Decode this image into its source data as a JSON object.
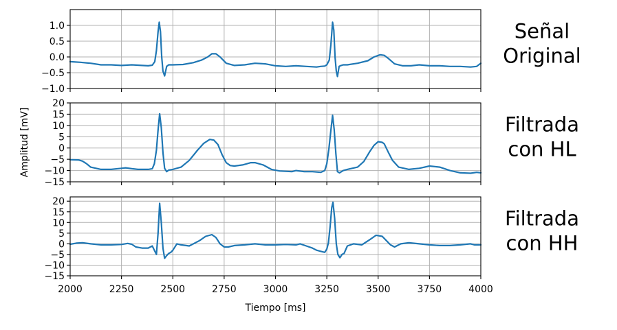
{
  "chart_data": {
    "type": "line",
    "shared_x": true,
    "xlabel": "Tiempo [ms]",
    "ylabel": "Amplitud [mV]",
    "xlim": [
      2000,
      4000
    ],
    "xticks": [
      2000,
      2250,
      2500,
      2750,
      3000,
      3250,
      3500,
      3750,
      4000
    ],
    "xtick_labels": [
      "2000",
      "2250",
      "2500",
      "2750",
      "3000",
      "3250",
      "3500",
      "3750",
      "4000"
    ],
    "grid": true,
    "color": "#1f77b4",
    "panels": [
      {
        "side_label": [
          "Señal",
          "Original"
        ],
        "ylim": [
          -1.0,
          1.5
        ],
        "yticks": [
          -1.0,
          -0.5,
          0.0,
          0.5,
          1.0
        ],
        "ytick_labels": [
          "−1.0",
          "−0.5",
          "0.0",
          "0.5",
          "1.0"
        ],
        "x": [
          2000,
          2050,
          2100,
          2150,
          2200,
          2250,
          2300,
          2350,
          2380,
          2400,
          2412,
          2420,
          2428,
          2434,
          2440,
          2446,
          2452,
          2460,
          2470,
          2480,
          2500,
          2550,
          2600,
          2640,
          2670,
          2690,
          2710,
          2730,
          2760,
          2800,
          2850,
          2900,
          2950,
          3000,
          3050,
          3100,
          3150,
          3200,
          3220,
          3240,
          3250,
          3262,
          3270,
          3278,
          3284,
          3290,
          3296,
          3302,
          3310,
          3320,
          3330,
          3350,
          3400,
          3450,
          3480,
          3510,
          3530,
          3550,
          3580,
          3620,
          3660,
          3700,
          3750,
          3800,
          3850,
          3900,
          3950,
          3980,
          4000
        ],
        "values": [
          -0.15,
          -0.17,
          -0.2,
          -0.25,
          -0.25,
          -0.27,
          -0.25,
          -0.27,
          -0.28,
          -0.26,
          -0.15,
          0.2,
          0.8,
          1.1,
          0.8,
          0.0,
          -0.45,
          -0.6,
          -0.3,
          -0.25,
          -0.25,
          -0.24,
          -0.18,
          -0.1,
          0.0,
          0.1,
          0.1,
          0.0,
          -0.2,
          -0.27,
          -0.25,
          -0.2,
          -0.22,
          -0.28,
          -0.3,
          -0.28,
          -0.3,
          -0.32,
          -0.3,
          -0.29,
          -0.25,
          -0.1,
          0.4,
          1.1,
          0.85,
          0.0,
          -0.45,
          -0.62,
          -0.3,
          -0.27,
          -0.25,
          -0.25,
          -0.2,
          -0.12,
          0.0,
          0.07,
          0.05,
          -0.05,
          -0.22,
          -0.28,
          -0.28,
          -0.25,
          -0.28,
          -0.28,
          -0.3,
          -0.3,
          -0.32,
          -0.3,
          -0.2
        ]
      },
      {
        "side_label": [
          "Filtrada",
          "con HL"
        ],
        "ylim": [
          -15,
          20
        ],
        "yticks": [
          -15,
          -10,
          -5,
          0,
          5,
          10,
          15,
          20
        ],
        "ytick_labels": [
          "−15",
          "−10",
          "−5",
          "0",
          "5",
          "10",
          "15",
          "20"
        ],
        "x": [
          2000,
          2040,
          2060,
          2080,
          2100,
          2150,
          2200,
          2250,
          2270,
          2300,
          2330,
          2380,
          2400,
          2410,
          2420,
          2428,
          2436,
          2444,
          2452,
          2460,
          2470,
          2480,
          2500,
          2540,
          2580,
          2620,
          2650,
          2680,
          2700,
          2720,
          2740,
          2760,
          2780,
          2800,
          2840,
          2880,
          2900,
          2940,
          2980,
          3020,
          3080,
          3100,
          3140,
          3180,
          3220,
          3240,
          3250,
          3260,
          3270,
          3278,
          3286,
          3294,
          3302,
          3312,
          3330,
          3350,
          3400,
          3430,
          3460,
          3480,
          3500,
          3520,
          3530,
          3550,
          3570,
          3600,
          3650,
          3700,
          3750,
          3800,
          3850,
          3900,
          3950,
          3980,
          4000
        ],
        "values": [
          -5.2,
          -5.3,
          -5.8,
          -7,
          -8.5,
          -9.5,
          -9.5,
          -9,
          -8.8,
          -9.2,
          -9.5,
          -9.5,
          -9.2,
          -7,
          -1,
          8,
          15.2,
          9,
          -2,
          -9,
          -10.5,
          -9.8,
          -9.5,
          -8.5,
          -5.5,
          -1,
          2,
          3.8,
          3.5,
          1.5,
          -3,
          -6.5,
          -7.8,
          -8,
          -7.5,
          -6.5,
          -6.5,
          -7.5,
          -9.5,
          -10.2,
          -10.5,
          -10,
          -10.5,
          -10.5,
          -10.8,
          -10,
          -7,
          -0.5,
          8,
          14.5,
          8,
          -2.5,
          -10.5,
          -11,
          -10,
          -9.5,
          -8.5,
          -6,
          -1.5,
          1.2,
          2.8,
          2.5,
          1.8,
          -2,
          -5.5,
          -8.5,
          -9.5,
          -9,
          -8,
          -8.5,
          -10,
          -11,
          -11.2,
          -10.8,
          -11
        ]
      },
      {
        "side_label": [
          "Filtrada",
          "con HH"
        ],
        "ylim": [
          -15,
          22
        ],
        "yticks": [
          -15,
          -10,
          -5,
          0,
          5,
          10,
          15,
          20
        ],
        "ytick_labels": [
          "−15",
          "−10",
          "−5",
          "0",
          "5",
          "10",
          "15",
          "20"
        ],
        "x": [
          2000,
          2030,
          2060,
          2100,
          2150,
          2200,
          2250,
          2280,
          2300,
          2320,
          2350,
          2380,
          2400,
          2410,
          2420,
          2428,
          2436,
          2444,
          2452,
          2460,
          2470,
          2480,
          2490,
          2500,
          2520,
          2540,
          2580,
          2630,
          2660,
          2690,
          2710,
          2730,
          2750,
          2770,
          2800,
          2850,
          2900,
          2950,
          3000,
          3050,
          3100,
          3120,
          3150,
          3180,
          3200,
          3220,
          3240,
          3250,
          3258,
          3266,
          3274,
          3280,
          3288,
          3296,
          3304,
          3314,
          3324,
          3334,
          3350,
          3380,
          3420,
          3460,
          3490,
          3520,
          3540,
          3560,
          3580,
          3610,
          3650,
          3700,
          3750,
          3800,
          3850,
          3900,
          3950,
          3970,
          4000
        ],
        "values": [
          -0.2,
          0.3,
          0.5,
          0,
          -0.5,
          -0.5,
          -0.3,
          0.2,
          -0.2,
          -1.5,
          -2,
          -2,
          -1,
          -3,
          -5,
          5,
          19,
          10,
          -2,
          -6.8,
          -5.5,
          -4.5,
          -4,
          -3,
          0,
          -0.5,
          -1,
          1.5,
          3.5,
          4.3,
          3,
          0,
          -1.5,
          -1.5,
          -0.8,
          -0.5,
          0,
          -0.5,
          -0.5,
          -0.3,
          -0.5,
          0,
          -1,
          -2,
          -3,
          -3.5,
          -4,
          -2.5,
          0.5,
          8,
          17,
          19.5,
          12,
          0,
          -5,
          -6.5,
          -5,
          -4.5,
          -1,
          0,
          -0.5,
          2,
          4,
          3.5,
          1.5,
          -0.5,
          -1.5,
          0,
          0.5,
          0,
          -0.5,
          -0.8,
          -0.8,
          -0.5,
          0,
          -0.5,
          -0.5
        ]
      }
    ]
  }
}
